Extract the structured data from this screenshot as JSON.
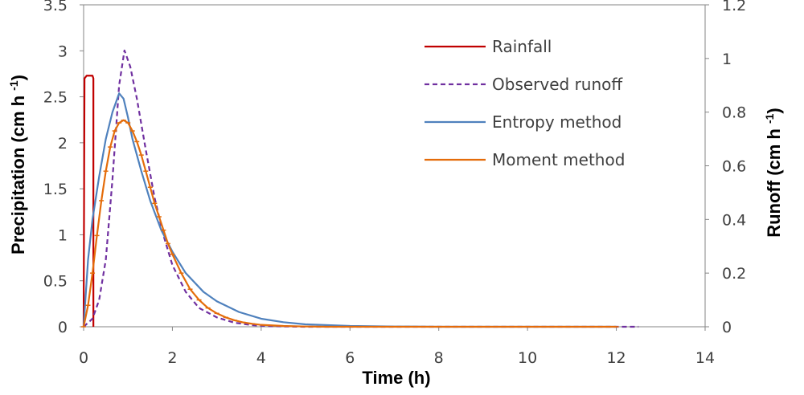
{
  "chart_data": {
    "type": "line",
    "xlabel": "Time (h)",
    "ylabel": "Precipitation (cm h ",
    "ylabel_sup": "-1",
    "ylabel_end": ")",
    "y2label": "Runoff (cm h ",
    "y2label_sup": "-1",
    "y2label_end": ")",
    "xlim": [
      0,
      14
    ],
    "ylim": [
      0,
      3.5
    ],
    "y2lim": [
      0,
      1.2
    ],
    "x_ticks": [
      "0",
      "2",
      "4",
      "6",
      "8",
      "10",
      "12",
      "14"
    ],
    "y_ticks": [
      "0",
      "0.5",
      "1",
      "1.5",
      "2",
      "2.5",
      "3",
      "3.5"
    ],
    "y2_ticks": [
      "0",
      "0.2",
      "0.4",
      "0.6",
      "0.8",
      "1",
      "1.2"
    ],
    "legend_position": "top-right",
    "series": [
      {
        "name": "Rainfall",
        "axis": "left",
        "color": "#c00000",
        "style": "solid",
        "x": [
          0,
          0.02,
          0.07,
          0.2,
          0.22,
          0.22
        ],
        "y": [
          0,
          2.7,
          2.73,
          2.73,
          2.7,
          0
        ]
      },
      {
        "name": "Observed runoff",
        "axis": "right",
        "color": "#7030a0",
        "style": "dashed",
        "x": [
          0,
          0.2,
          0.35,
          0.5,
          0.65,
          0.8,
          0.92,
          1.05,
          1.2,
          1.4,
          1.6,
          1.8,
          2.0,
          2.3,
          2.6,
          3.0,
          3.4,
          3.8,
          4.2,
          5,
          6,
          8,
          10,
          12,
          12.5
        ],
        "y": [
          0,
          0.03,
          0.1,
          0.25,
          0.55,
          0.9,
          1.03,
          0.97,
          0.85,
          0.66,
          0.48,
          0.34,
          0.23,
          0.13,
          0.07,
          0.035,
          0.015,
          0.006,
          0.002,
          0,
          0,
          0,
          0,
          0,
          0
        ]
      },
      {
        "name": "Entropy method",
        "axis": "right",
        "color": "#4f81bd",
        "style": "solid",
        "x": [
          0,
          0.1,
          0.2,
          0.35,
          0.5,
          0.65,
          0.8,
          0.9,
          1.0,
          1.1,
          1.3,
          1.5,
          1.75,
          2.0,
          2.3,
          2.7,
          3.0,
          3.5,
          4.0,
          4.5,
          5,
          6,
          7,
          8,
          10,
          12
        ],
        "y": [
          0,
          0.25,
          0.4,
          0.56,
          0.7,
          0.8,
          0.87,
          0.85,
          0.78,
          0.7,
          0.58,
          0.47,
          0.36,
          0.28,
          0.2,
          0.13,
          0.095,
          0.055,
          0.03,
          0.017,
          0.009,
          0.003,
          0.001,
          0,
          0,
          0
        ]
      },
      {
        "name": "Moment method",
        "axis": "right",
        "color": "#e46c0a",
        "style": "solid-markers",
        "x": [
          0,
          0.1,
          0.2,
          0.3,
          0.4,
          0.5,
          0.6,
          0.7,
          0.8,
          0.9,
          1.0,
          1.1,
          1.2,
          1.3,
          1.4,
          1.5,
          1.6,
          1.7,
          1.8,
          1.9,
          2.0,
          2.2,
          2.4,
          2.6,
          2.8,
          3.0,
          3.2,
          3.4,
          3.6,
          3.8,
          4.0,
          4.5,
          5,
          5.5,
          6,
          6.5,
          7,
          7.5,
          8,
          8.5,
          9,
          9.5,
          10,
          10.5,
          11,
          11.5,
          12
        ],
        "y": [
          0,
          0.08,
          0.2,
          0.34,
          0.47,
          0.58,
          0.67,
          0.73,
          0.76,
          0.77,
          0.76,
          0.73,
          0.69,
          0.64,
          0.58,
          0.52,
          0.46,
          0.41,
          0.36,
          0.31,
          0.27,
          0.2,
          0.14,
          0.1,
          0.07,
          0.05,
          0.035,
          0.024,
          0.016,
          0.011,
          0.007,
          0.003,
          0.001,
          0,
          0,
          0,
          0,
          0,
          0,
          0,
          0,
          0,
          0,
          0,
          0,
          0,
          0
        ]
      }
    ]
  }
}
